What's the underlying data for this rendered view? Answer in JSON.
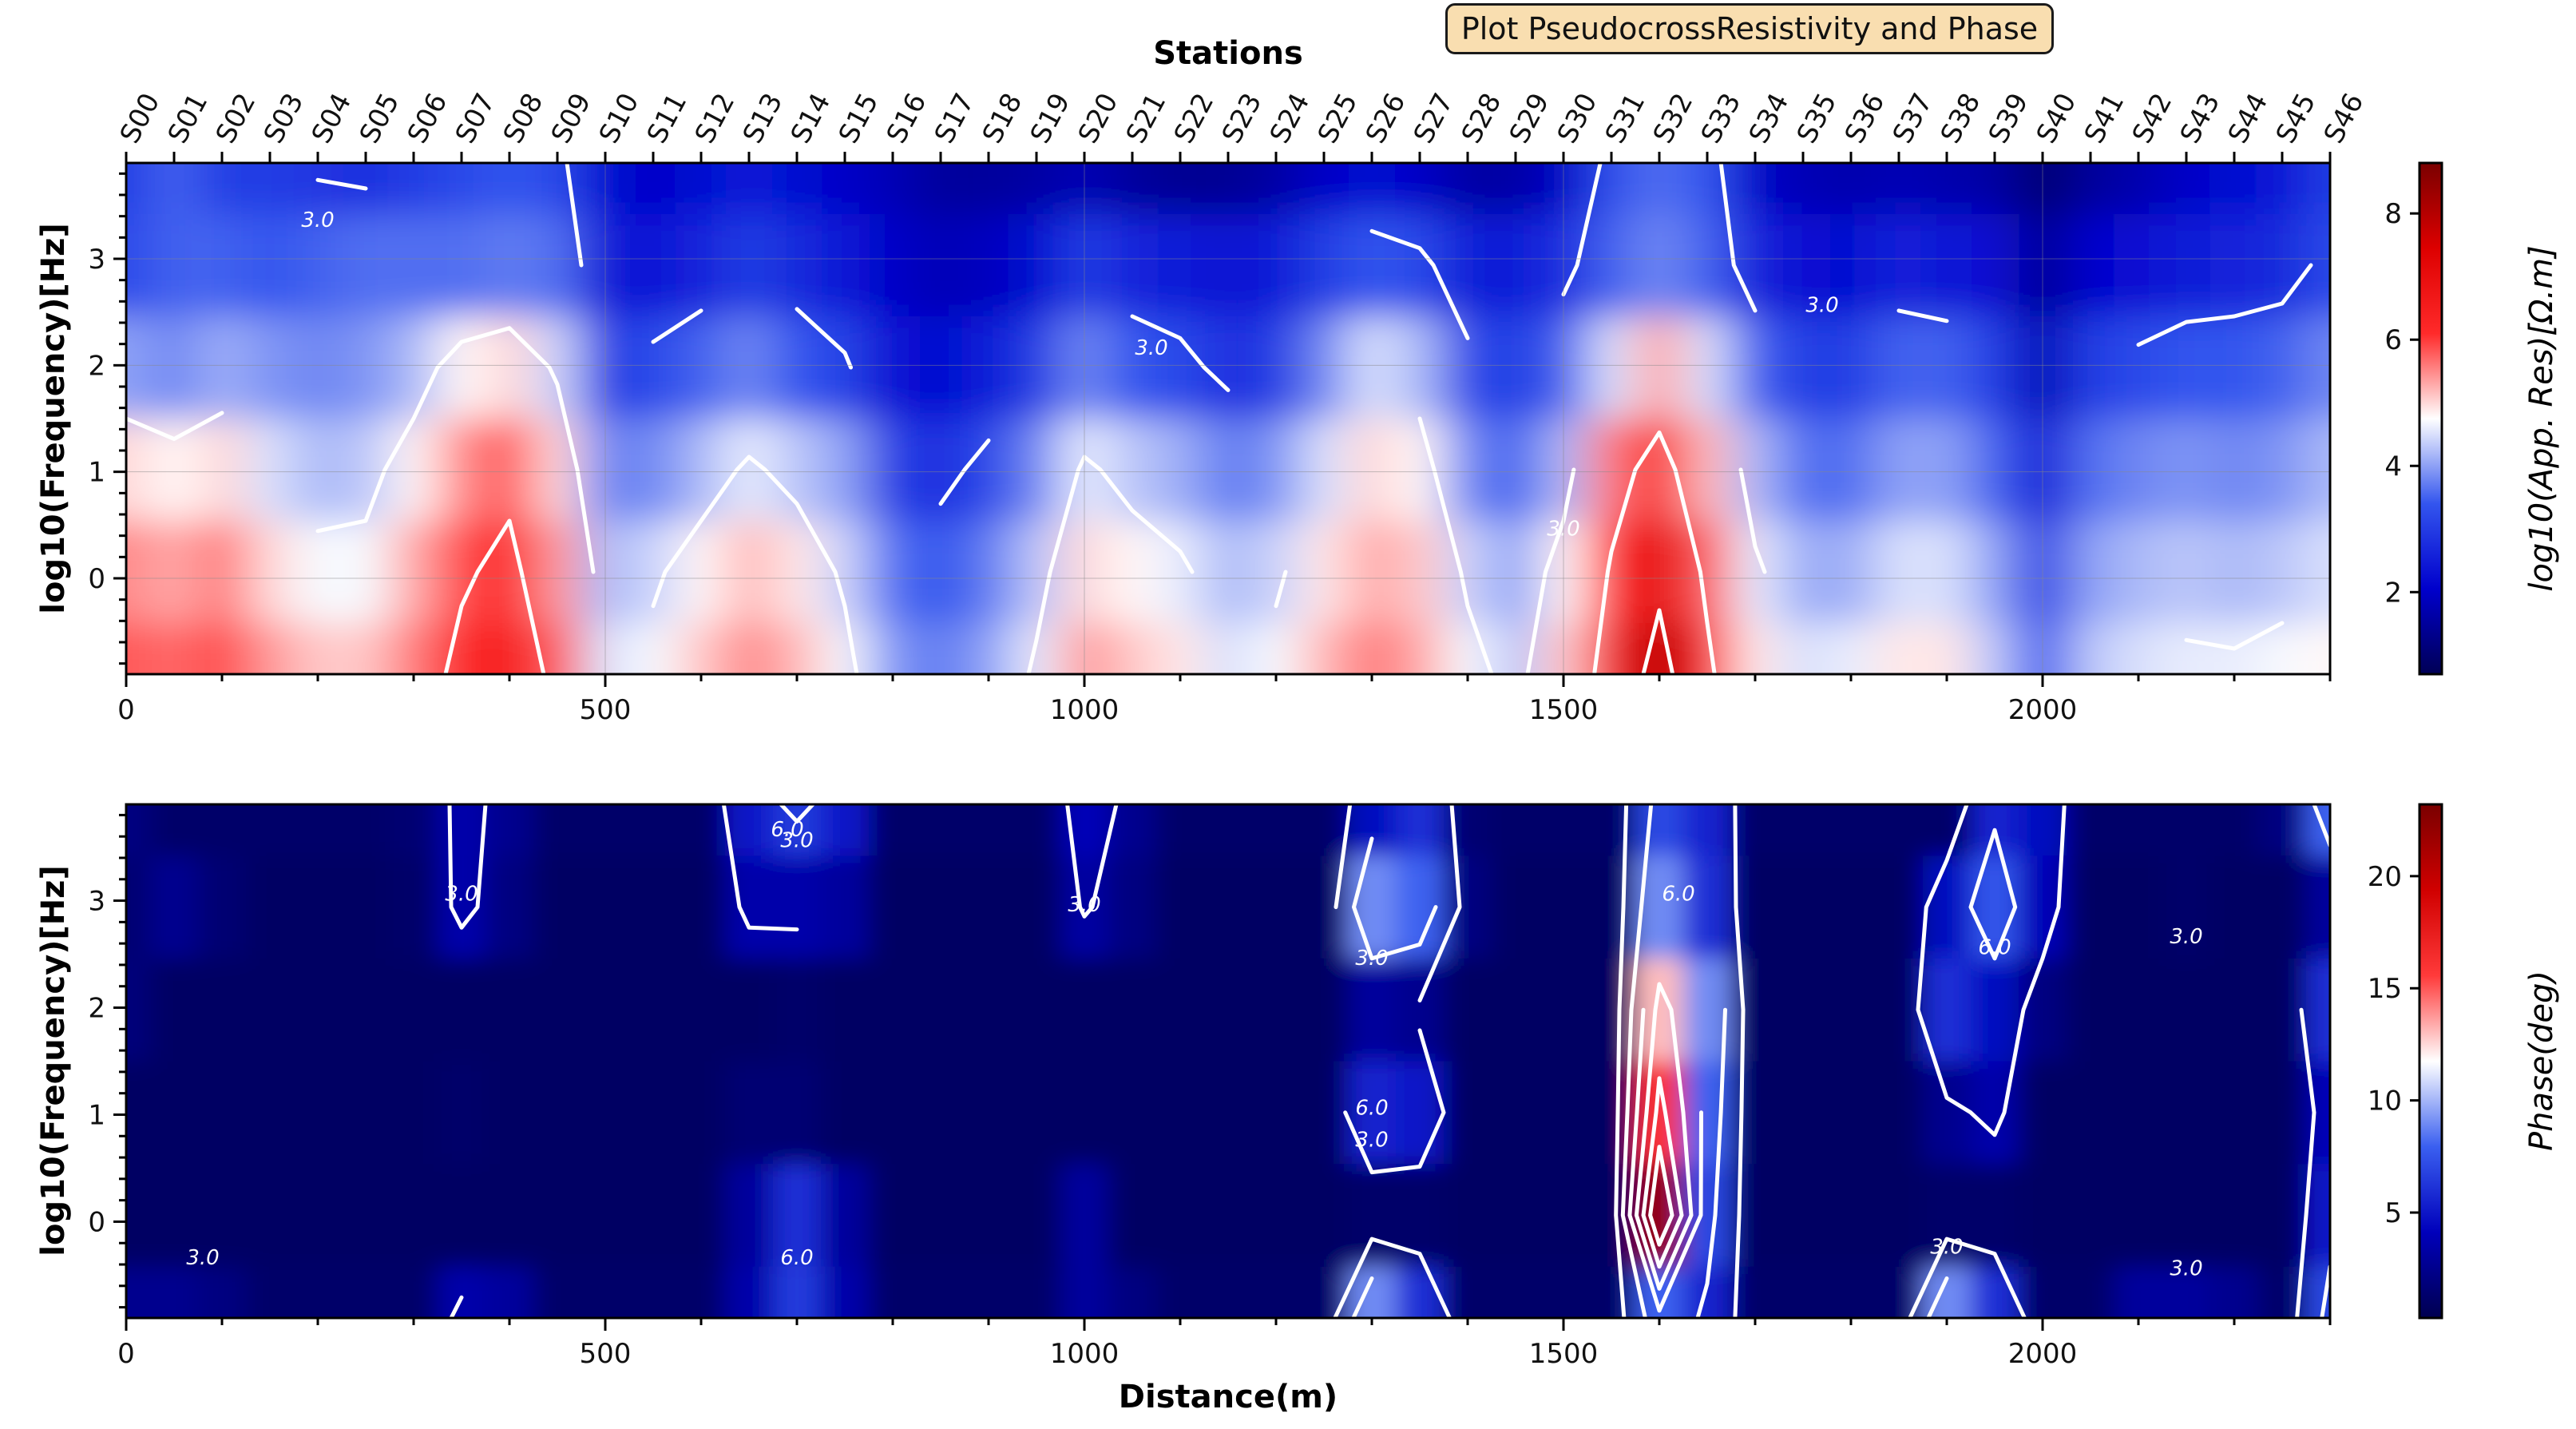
{
  "window": {
    "title": "Plot PseudocrossResistivity and Phase"
  },
  "chart_data": [
    {
      "type": "heatmap",
      "id": "resistivity",
      "top_axis_label": "Stations",
      "stations": [
        "S00",
        "S01",
        "S02",
        "S03",
        "S04",
        "S05",
        "S06",
        "S07",
        "S08",
        "S09",
        "S10",
        "S11",
        "S12",
        "S13",
        "S14",
        "S15",
        "S16",
        "S17",
        "S18",
        "S19",
        "S20",
        "S21",
        "S22",
        "S23",
        "S24",
        "S25",
        "S26",
        "S27",
        "S28",
        "S29",
        "S30",
        "S31",
        "S32",
        "S33",
        "S34",
        "S35",
        "S36",
        "S37",
        "S38",
        "S39",
        "S40",
        "S41",
        "S42",
        "S43",
        "S44",
        "S45",
        "S46"
      ],
      "station_spacing_m": 50,
      "xlabel": "",
      "ylabel": "log10(Frequency)[Hz]",
      "xlim": [
        0,
        2300
      ],
      "ylim": [
        -0.9,
        3.9
      ],
      "xticks": [
        0,
        500,
        1000,
        1500,
        2000
      ],
      "yticks": [
        0,
        1,
        2,
        3
      ],
      "colorbar_label": "log10(App. Res)[Ω.m]",
      "colorbar_range": [
        0.7,
        8.8
      ],
      "colorbar_ticks": [
        2,
        4,
        6,
        8
      ],
      "colormap": [
        "#000055",
        "#0000cc",
        "#3355ee",
        "#ffffff",
        "#ff2a2a",
        "#dd0000",
        "#7a0000"
      ],
      "contour_label": "3.0",
      "grid": true,
      "rows_freq": [
        3.9,
        3.0,
        2.0,
        1.0,
        0.0,
        -0.9
      ],
      "values": [
        [
          3.0,
          3.5,
          3.0,
          3.0,
          2.9,
          2.8,
          3.0,
          3.2,
          3.4,
          3.2,
          2.2,
          2.0,
          2.2,
          2.5,
          2.2,
          2.0,
          1.8,
          1.5,
          1.5,
          1.6,
          1.8,
          1.5,
          1.4,
          1.4,
          1.6,
          2.0,
          2.2,
          2.0,
          1.6,
          1.6,
          2.0,
          3.3,
          3.6,
          3.4,
          2.0,
          1.8,
          1.7,
          1.8,
          1.7,
          1.6,
          1.0,
          1.5,
          1.7,
          2.0,
          2.2,
          2.4,
          3.0
        ],
        [
          3.2,
          3.5,
          3.5,
          3.4,
          3.5,
          3.6,
          3.6,
          3.6,
          3.7,
          3.6,
          2.4,
          2.4,
          2.6,
          3.0,
          2.7,
          2.4,
          2.0,
          1.8,
          1.9,
          2.2,
          3.0,
          2.6,
          2.5,
          2.3,
          2.5,
          3.0,
          3.4,
          3.2,
          2.5,
          2.5,
          2.8,
          3.5,
          3.8,
          3.5,
          2.6,
          2.3,
          2.2,
          2.6,
          2.4,
          2.3,
          1.4,
          2.1,
          2.3,
          2.5,
          2.6,
          2.7,
          3.2
        ],
        [
          4.0,
          3.8,
          4.1,
          3.9,
          3.8,
          3.9,
          4.2,
          4.8,
          5.0,
          4.4,
          3.0,
          3.2,
          3.5,
          3.8,
          3.4,
          3.1,
          2.3,
          2.2,
          2.5,
          3.0,
          3.8,
          3.4,
          3.2,
          2.8,
          3.0,
          3.8,
          4.5,
          4.2,
          3.2,
          3.0,
          3.5,
          4.5,
          5.3,
          4.5,
          3.5,
          3.0,
          3.0,
          3.5,
          3.5,
          3.0,
          1.8,
          3.0,
          3.2,
          3.4,
          3.4,
          3.5,
          3.8
        ],
        [
          5.0,
          4.8,
          5.0,
          4.5,
          4.2,
          4.3,
          4.8,
          5.5,
          5.8,
          5.0,
          3.8,
          3.8,
          4.2,
          4.6,
          4.3,
          4.0,
          3.0,
          2.8,
          3.2,
          3.8,
          4.6,
          4.3,
          4.1,
          3.7,
          3.9,
          4.5,
          5.0,
          4.8,
          3.8,
          3.5,
          4.2,
          5.6,
          6.4,
          5.2,
          4.2,
          3.6,
          3.6,
          4.0,
          4.0,
          3.5,
          2.4,
          3.6,
          3.8,
          3.9,
          3.8,
          3.9,
          4.2
        ],
        [
          5.5,
          5.3,
          5.6,
          5.0,
          4.7,
          4.7,
          5.3,
          5.9,
          6.2,
          5.4,
          4.2,
          4.4,
          4.8,
          5.2,
          4.9,
          4.4,
          3.6,
          3.4,
          3.7,
          4.3,
          5.0,
          4.8,
          4.6,
          4.2,
          4.4,
          4.9,
          5.3,
          5.1,
          4.4,
          4.0,
          4.8,
          6.1,
          7.2,
          5.8,
          4.6,
          4.1,
          4.1,
          4.5,
          4.5,
          4.0,
          3.0,
          4.0,
          4.2,
          4.3,
          4.2,
          4.3,
          4.5
        ],
        [
          5.8,
          5.7,
          5.9,
          5.4,
          5.1,
          5.1,
          5.6,
          6.2,
          6.5,
          5.8,
          4.5,
          4.7,
          5.1,
          5.5,
          5.2,
          4.7,
          3.9,
          3.7,
          4.0,
          4.6,
          5.4,
          5.1,
          4.9,
          4.5,
          4.7,
          5.2,
          5.6,
          5.3,
          4.7,
          4.3,
          5.1,
          6.5,
          8.0,
          6.2,
          4.9,
          4.5,
          4.6,
          4.9,
          4.9,
          4.3,
          3.4,
          4.3,
          4.5,
          4.6,
          4.6,
          4.7,
          4.8
        ]
      ]
    },
    {
      "type": "heatmap",
      "id": "phase",
      "xlabel": "Distance(m)",
      "ylabel": "log10(Frequency)[Hz]",
      "xlim": [
        0,
        2300
      ],
      "ylim": [
        -0.9,
        3.9
      ],
      "xticks": [
        0,
        500,
        1000,
        1500,
        2000
      ],
      "yticks": [
        0,
        1,
        2,
        3
      ],
      "colorbar_label": "Phase(deg)",
      "colorbar_range": [
        0.3,
        23.2
      ],
      "colorbar_ticks": [
        5,
        10,
        15,
        20
      ],
      "colormap": [
        "#000050",
        "#0000bb",
        "#3a5ff0",
        "#ffffff",
        "#ff3a3a",
        "#d00000",
        "#7a0000"
      ],
      "contour_labels": [
        "3.0",
        "6.0"
      ],
      "grid": false,
      "rows_freq": [
        3.9,
        3.0,
        2.0,
        1.0,
        0.0,
        -0.9
      ],
      "values": [
        [
          2.0,
          1.2,
          1.2,
          1.2,
          1.2,
          1.2,
          1.5,
          3.5,
          2.5,
          1.2,
          1.2,
          1.2,
          1.2,
          5.0,
          6.5,
          5.0,
          1.2,
          1.2,
          1.2,
          1.2,
          4.0,
          2.5,
          1.2,
          1.2,
          1.2,
          1.2,
          4.5,
          6.0,
          1.5,
          1.2,
          1.2,
          1.2,
          7.0,
          5.5,
          1.2,
          1.2,
          1.2,
          1.2,
          1.2,
          5.5,
          4.5,
          1.2,
          1.2,
          1.2,
          1.2,
          2.0,
          8.0
        ],
        [
          1.5,
          2.5,
          1.5,
          1.0,
          1.0,
          1.0,
          1.2,
          3.5,
          2.0,
          1.0,
          1.0,
          1.0,
          1.0,
          3.5,
          3.5,
          3.0,
          1.0,
          1.0,
          1.0,
          1.0,
          3.2,
          2.0,
          1.0,
          1.0,
          1.0,
          1.0,
          9.0,
          8.0,
          2.0,
          1.0,
          1.0,
          1.0,
          9.0,
          6.0,
          1.0,
          1.0,
          1.0,
          1.0,
          4.5,
          7.5,
          4.0,
          1.0,
          1.0,
          1.2,
          1.0,
          1.0,
          3.0
        ],
        [
          1.8,
          1.0,
          1.0,
          1.0,
          1.0,
          1.0,
          1.0,
          1.0,
          1.0,
          1.0,
          1.0,
          1.0,
          1.0,
          1.0,
          1.2,
          1.0,
          1.0,
          1.0,
          1.0,
          1.0,
          1.0,
          1.0,
          1.0,
          1.0,
          1.0,
          1.0,
          3.0,
          2.5,
          1.0,
          1.0,
          1.0,
          1.0,
          13.0,
          9.0,
          1.0,
          1.0,
          1.0,
          1.0,
          6.0,
          4.5,
          2.0,
          1.0,
          1.0,
          1.0,
          1.0,
          1.0,
          6.0
        ],
        [
          1.0,
          1.0,
          1.0,
          1.0,
          1.0,
          1.0,
          1.0,
          1.2,
          1.0,
          1.0,
          1.0,
          1.0,
          1.0,
          1.5,
          1.5,
          1.0,
          1.0,
          1.0,
          1.0,
          1.0,
          1.0,
          1.0,
          1.0,
          1.0,
          1.0,
          1.0,
          5.5,
          5.0,
          1.0,
          1.0,
          1.0,
          1.0,
          16.0,
          8.0,
          1.0,
          1.0,
          1.0,
          1.0,
          2.5,
          3.5,
          1.0,
          1.0,
          1.0,
          1.0,
          1.0,
          1.0,
          4.0
        ],
        [
          1.0,
          1.0,
          1.0,
          1.0,
          1.0,
          1.0,
          1.0,
          1.0,
          1.0,
          1.0,
          1.0,
          1.0,
          1.0,
          3.0,
          6.0,
          3.0,
          1.0,
          1.0,
          1.0,
          1.0,
          3.0,
          1.0,
          1.0,
          1.0,
          1.0,
          1.0,
          1.2,
          1.2,
          1.0,
          1.0,
          1.0,
          1.0,
          22.0,
          7.0,
          1.0,
          1.0,
          1.0,
          1.0,
          1.2,
          1.2,
          1.0,
          1.0,
          1.0,
          1.0,
          1.0,
          1.0,
          5.0
        ],
        [
          2.5,
          2.5,
          2.0,
          1.2,
          1.2,
          1.2,
          1.2,
          3.5,
          3.0,
          1.2,
          1.2,
          1.2,
          1.2,
          3.5,
          6.5,
          3.5,
          1.2,
          1.2,
          1.2,
          1.2,
          3.0,
          2.0,
          1.2,
          1.2,
          1.2,
          1.2,
          9.0,
          6.0,
          1.2,
          1.2,
          1.2,
          1.2,
          8.0,
          5.5,
          1.2,
          1.2,
          1.2,
          1.2,
          9.0,
          6.0,
          1.2,
          1.2,
          3.0,
          3.0,
          2.5,
          1.2,
          7.0
        ]
      ]
    }
  ]
}
